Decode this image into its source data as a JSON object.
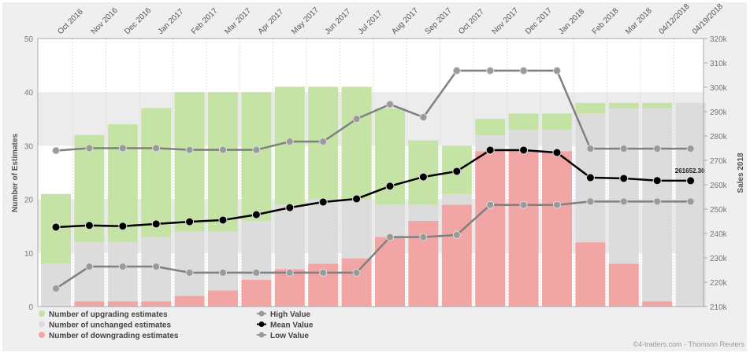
{
  "chart_data": {
    "type": "bar",
    "categories": [
      "Oct 2016",
      "Nov 2016",
      "Dec 2016",
      "Jan 2017",
      "Feb 2017",
      "Mar 2017",
      "Apr 2017",
      "May 2017",
      "Jun 2017",
      "Jul 2017",
      "Aug 2017",
      "Sep 2017",
      "Oct 2017",
      "Nov 2017",
      "Dec 2017",
      "Jan 2018",
      "Feb 2018",
      "Mar 2018",
      "04/12/2018",
      "04/19/2018"
    ],
    "ylabel": "Number of Estimates",
    "ylim": [
      0,
      50
    ],
    "yticks": [
      "0",
      "10",
      "20",
      "30",
      "40",
      "50"
    ],
    "y2label": "Sales 2018",
    "y2lim": [
      210,
      320
    ],
    "y2ticks": [
      "210k",
      "220k",
      "230k",
      "240k",
      "250k",
      "260k",
      "270k",
      "280k",
      "290k",
      "300k",
      "310k",
      "320k"
    ],
    "stacked_series": [
      {
        "name": "Number of downgrading estimates",
        "color": "#f2a5a5",
        "values": [
          0,
          1,
          1,
          1,
          2,
          3,
          5,
          7,
          8,
          9,
          13,
          16,
          19,
          29,
          29,
          29,
          12,
          8,
          1,
          0
        ]
      },
      {
        "name": "Number of unchanged estimates",
        "color": "#dcdcdc",
        "values": [
          8,
          11,
          11,
          12,
          12,
          11,
          11,
          12,
          12,
          11,
          6,
          3,
          2,
          3,
          4,
          4,
          24,
          29,
          36,
          38
        ]
      },
      {
        "name": "Number of upgrading estimates",
        "color": "#c5e3a5",
        "values": [
          13,
          20,
          22,
          24,
          26,
          26,
          24,
          22,
          21,
          21,
          18,
          12,
          9,
          3,
          3,
          3,
          2,
          1,
          1,
          0
        ]
      }
    ],
    "line_series": [
      {
        "name": "High Value",
        "color": "#808080",
        "values_k": [
          274,
          275,
          275,
          275,
          274.3,
          274.3,
          274.3,
          277.7,
          277.7,
          287,
          293,
          287.7,
          306.8,
          306.8,
          306.8,
          306.8,
          274.8,
          274.8,
          274.8,
          274.8
        ]
      },
      {
        "name": "Mean Value",
        "color": "#000000",
        "values_k": [
          242.6,
          243.3,
          243,
          243.9,
          244.8,
          245.5,
          247.7,
          250.6,
          252.9,
          254.2,
          259.4,
          263.2,
          265.5,
          274.2,
          274.2,
          273.2,
          262.9,
          262.6,
          261.7,
          261.65
        ]
      },
      {
        "name": "Low Value",
        "color": "#808080",
        "values_k": [
          217.4,
          226.4,
          226.4,
          226.4,
          223.9,
          223.9,
          223.9,
          223.9,
          223.9,
          223.9,
          238.5,
          238.5,
          239.4,
          251.7,
          251.7,
          251.7,
          253.1,
          253.1,
          253.1,
          253.1
        ]
      }
    ],
    "last_value_label": "261652.30",
    "legend_placement": "bottom-left",
    "credit": "©4-traders.com - Thomson Reuters"
  }
}
